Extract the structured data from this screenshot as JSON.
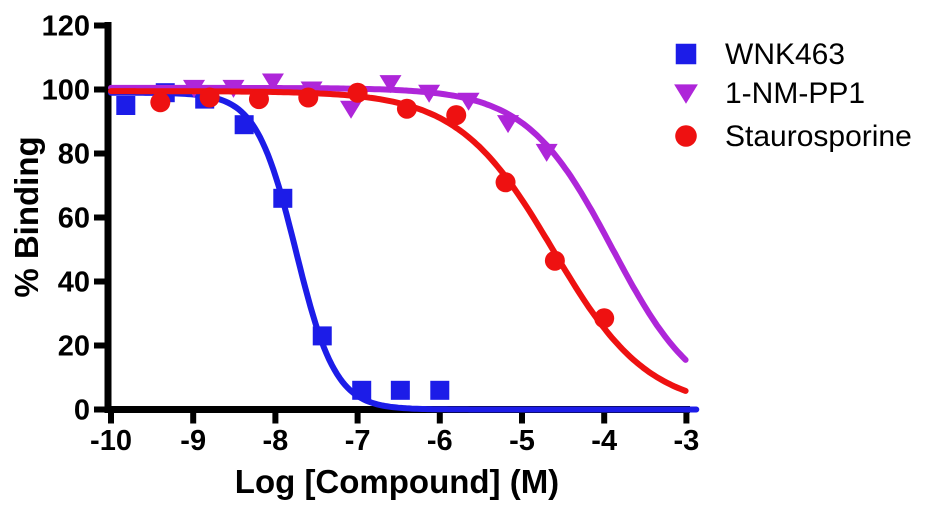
{
  "figure": {
    "background": "#ffffff"
  },
  "chart_data": {
    "type": "scatter",
    "title": "",
    "xlabel": "Log [Compound] (M)",
    "ylabel": "% Binding",
    "xlim": [
      -10,
      -3
    ],
    "ylim": [
      0,
      120
    ],
    "x_ticks": [
      -10,
      -9,
      -8,
      -7,
      -6,
      -5,
      -4,
      -3
    ],
    "y_ticks": [
      0,
      20,
      40,
      60,
      80,
      100,
      120
    ],
    "grid": false,
    "legend_position": "top-right",
    "axis_color": "#000000",
    "series": [
      {
        "name": "WNK463",
        "color": "#1c1ce8",
        "marker": "square",
        "points": [
          [
            -9.82,
            95
          ],
          [
            -9.34,
            99
          ],
          [
            -8.86,
            97
          ],
          [
            -8.38,
            89
          ],
          [
            -7.91,
            66
          ],
          [
            -7.43,
            23
          ],
          [
            -6.95,
            6
          ],
          [
            -6.48,
            6
          ],
          [
            -6.0,
            6
          ]
        ],
        "fit_curve": {
          "model": "sigmoid-inhibition",
          "top": 99,
          "bottom": 0,
          "logIC50": -7.75,
          "hill": 1.8
        }
      },
      {
        "name": "1-NM-PP1",
        "color": "#ae26d9",
        "marker": "triangle-down",
        "points": [
          [
            -8.99,
            100.5
          ],
          [
            -8.51,
            100.5
          ],
          [
            -8.03,
            102.5
          ],
          [
            -7.56,
            100
          ],
          [
            -7.08,
            94
          ],
          [
            -6.6,
            102
          ],
          [
            -6.13,
            99
          ],
          [
            -5.65,
            96.5
          ],
          [
            -5.17,
            89.5
          ],
          [
            -4.7,
            80.5
          ]
        ],
        "fit_curve": {
          "model": "sigmoid-inhibition",
          "top": 100.5,
          "bottom": 0,
          "logIC50": -3.9,
          "hill": 0.83
        }
      },
      {
        "name": "Staurosporine",
        "color": "#ee1111",
        "marker": "circle",
        "points": [
          [
            -9.4,
            96
          ],
          [
            -8.8,
            97.5
          ],
          [
            -8.2,
            97
          ],
          [
            -7.6,
            97.5
          ],
          [
            -7.0,
            99
          ],
          [
            -6.4,
            94
          ],
          [
            -5.8,
            92
          ],
          [
            -5.2,
            71
          ],
          [
            -4.6,
            46.5
          ],
          [
            -4.0,
            28.5
          ]
        ],
        "fit_curve": {
          "model": "sigmoid-inhibition",
          "top": 99.5,
          "bottom": 0,
          "logIC50": -4.62,
          "hill": 0.75
        }
      }
    ]
  }
}
